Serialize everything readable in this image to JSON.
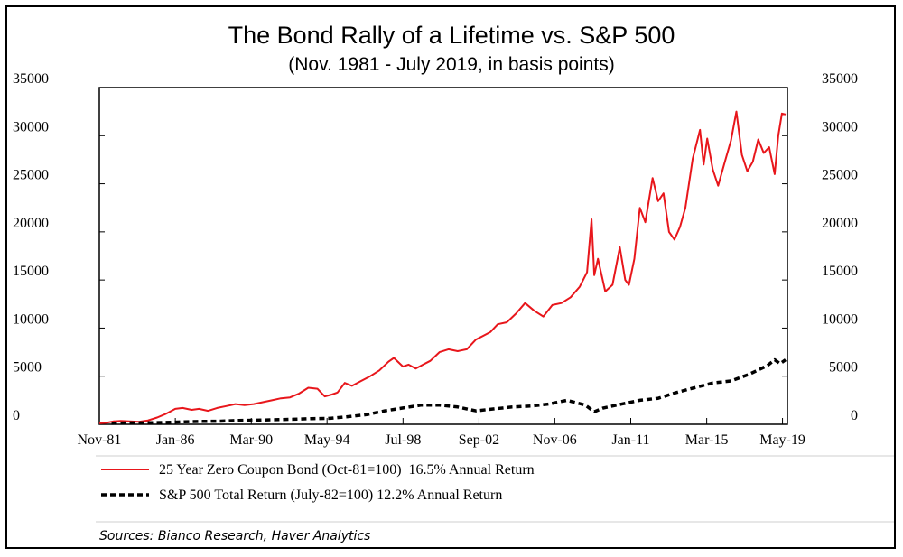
{
  "chart_data": {
    "type": "line",
    "title": "The Bond Rally of a Lifetime vs. S&P 500",
    "subtitle": "(Nov. 1981 - July 2019, in basis points)",
    "x_tick_labels": [
      "Nov-81",
      "Jan-86",
      "Mar-90",
      "May-94",
      "Jul-98",
      "Sep-02",
      "Nov-06",
      "Jan-11",
      "Mar-15",
      "May-19"
    ],
    "x_ticks": [
      1981.83,
      1986.0,
      1990.17,
      1994.33,
      1998.5,
      2002.67,
      2006.83,
      2011.0,
      2015.17,
      2019.33
    ],
    "xlim": [
      1981.83,
      2019.6
    ],
    "ylim": [
      0,
      35000
    ],
    "y_ticks_left": [
      0,
      5000,
      10000,
      15000,
      20000,
      25000,
      30000,
      35000
    ],
    "y_ticks_right": [
      0,
      5000,
      10000,
      15000,
      20000,
      25000,
      30000,
      35000
    ],
    "series": [
      {
        "name": "25 Year Zero Coupon Bond (Oct-81=100)  16.5% Annual Return",
        "color": "#e8161b",
        "style": "solid",
        "x": [
          1981.83,
          1982.2,
          1982.6,
          1983.0,
          1983.5,
          1984.0,
          1984.5,
          1985.0,
          1985.5,
          1986.0,
          1986.4,
          1986.9,
          1987.3,
          1987.8,
          1988.3,
          1988.8,
          1989.3,
          1989.8,
          1990.3,
          1990.8,
          1991.3,
          1991.8,
          1992.3,
          1992.8,
          1993.3,
          1993.8,
          1994.2,
          1994.6,
          1994.9,
          1995.3,
          1995.7,
          1996.2,
          1996.7,
          1997.2,
          1997.7,
          1998.0,
          1998.5,
          1998.8,
          1999.2,
          1999.6,
          2000.0,
          2000.5,
          2001.0,
          2001.5,
          2002.0,
          2002.5,
          2002.9,
          2003.3,
          2003.7,
          2004.2,
          2004.7,
          2005.2,
          2005.7,
          2006.2,
          2006.7,
          2007.2,
          2007.7,
          2008.2,
          2008.6,
          2008.85,
          2009.0,
          2009.2,
          2009.6,
          2010.0,
          2010.4,
          2010.7,
          2010.9,
          2011.2,
          2011.5,
          2011.8,
          2012.2,
          2012.5,
          2012.8,
          2013.1,
          2013.4,
          2013.7,
          2014.0,
          2014.4,
          2014.8,
          2015.0,
          2015.2,
          2015.5,
          2015.8,
          2016.2,
          2016.5,
          2016.8,
          2017.1,
          2017.4,
          2017.7,
          2018.0,
          2018.3,
          2018.6,
          2018.9,
          2019.1,
          2019.3,
          2019.5
        ],
        "y": [
          100,
          150,
          300,
          350,
          300,
          250,
          400,
          700,
          1100,
          1600,
          1700,
          1500,
          1600,
          1400,
          1700,
          1900,
          2100,
          2000,
          2100,
          2300,
          2500,
          2700,
          2800,
          3200,
          3800,
          3700,
          2900,
          3100,
          3300,
          4300,
          4000,
          4500,
          5000,
          5600,
          6500,
          6900,
          6000,
          6200,
          5800,
          6200,
          6600,
          7500,
          7800,
          7600,
          7800,
          8800,
          9200,
          9600,
          10400,
          10600,
          11500,
          12600,
          11800,
          11200,
          12400,
          12600,
          13200,
          14300,
          15800,
          21300,
          15500,
          17200,
          13800,
          14500,
          18400,
          15000,
          14500,
          17200,
          22500,
          21000,
          25600,
          23200,
          24000,
          20000,
          19200,
          20500,
          22500,
          27600,
          30600,
          27000,
          29700,
          26500,
          24800,
          27500,
          29500,
          32500,
          28000,
          26300,
          27300,
          29600,
          28200,
          28800,
          26000,
          30000,
          32300,
          32200
        ]
      },
      {
        "name": "S&P 500 Total Return (July-82=100) 12.2% Annual Return",
        "color": "#000000",
        "style": "dashed",
        "x": [
          1982.5,
          1983.5,
          1984.5,
          1985.5,
          1986.5,
          1987.5,
          1988.5,
          1989.5,
          1990.5,
          1991.5,
          1992.5,
          1993.5,
          1994.5,
          1995.5,
          1996.5,
          1997.5,
          1998.5,
          1999.5,
          2000.5,
          2001.5,
          2002.5,
          2003.5,
          2004.5,
          2005.5,
          2006.5,
          2007.5,
          2008.5,
          2009.0,
          2009.5,
          2010.5,
          2011.5,
          2012.5,
          2013.5,
          2014.5,
          2015.5,
          2016.5,
          2017.5,
          2018.5,
          2018.9,
          2019.2,
          2019.5
        ],
        "y": [
          100,
          150,
          160,
          200,
          260,
          300,
          330,
          400,
          430,
          480,
          530,
          590,
          620,
          800,
          1000,
          1400,
          1700,
          2000,
          2000,
          1800,
          1400,
          1600,
          1800,
          1900,
          2100,
          2500,
          2000,
          1300,
          1700,
          2100,
          2500,
          2700,
          3300,
          3800,
          4300,
          4500,
          5200,
          6100,
          6700,
          6300,
          6700
        ]
      }
    ]
  },
  "sources": "Sources: Bianco Research, Haver Analytics"
}
